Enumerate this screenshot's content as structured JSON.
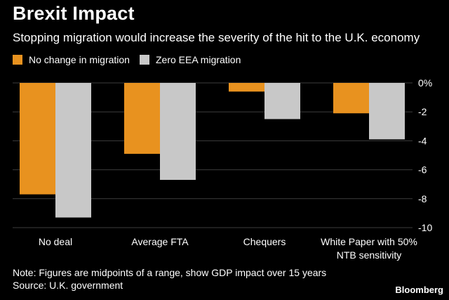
{
  "header": {
    "title": "Brexit Impact",
    "subtitle": "Stopping migration would increase the severity of the hit to the U.K. economy"
  },
  "footer": {
    "note": "Note: Figures are midpoints of a range, show GDP impact over 15 years",
    "source": "Source: U.K. government",
    "brand": "Bloomberg"
  },
  "chart_data": {
    "type": "bar",
    "categories": [
      "No deal",
      [
        "Average FTA"
      ],
      [
        "Chequers"
      ],
      [
        "White Paper with 50%",
        "NTB sensitivity"
      ]
    ],
    "category_labels": [
      "No deal",
      "Average FTA",
      "Chequers",
      "White Paper with 50% NTB sensitivity"
    ],
    "series": [
      {
        "name": "No change in migration",
        "color": "#e8921f",
        "values": [
          -7.7,
          -4.9,
          -0.6,
          -2.1
        ]
      },
      {
        "name": "Zero EEA migration",
        "color": "#c8c8c8",
        "values": [
          -9.3,
          -6.7,
          -2.5,
          -3.9
        ]
      }
    ],
    "ylim": [
      -10,
      0
    ],
    "yticks": [
      0,
      -2,
      -4,
      -6,
      -8,
      -10
    ],
    "ytick_labels": [
      "0%",
      "-2",
      "-4",
      "-6",
      "-8",
      "-10"
    ],
    "axis_side": "right",
    "gridlines": true,
    "legend_position": "top-left"
  }
}
